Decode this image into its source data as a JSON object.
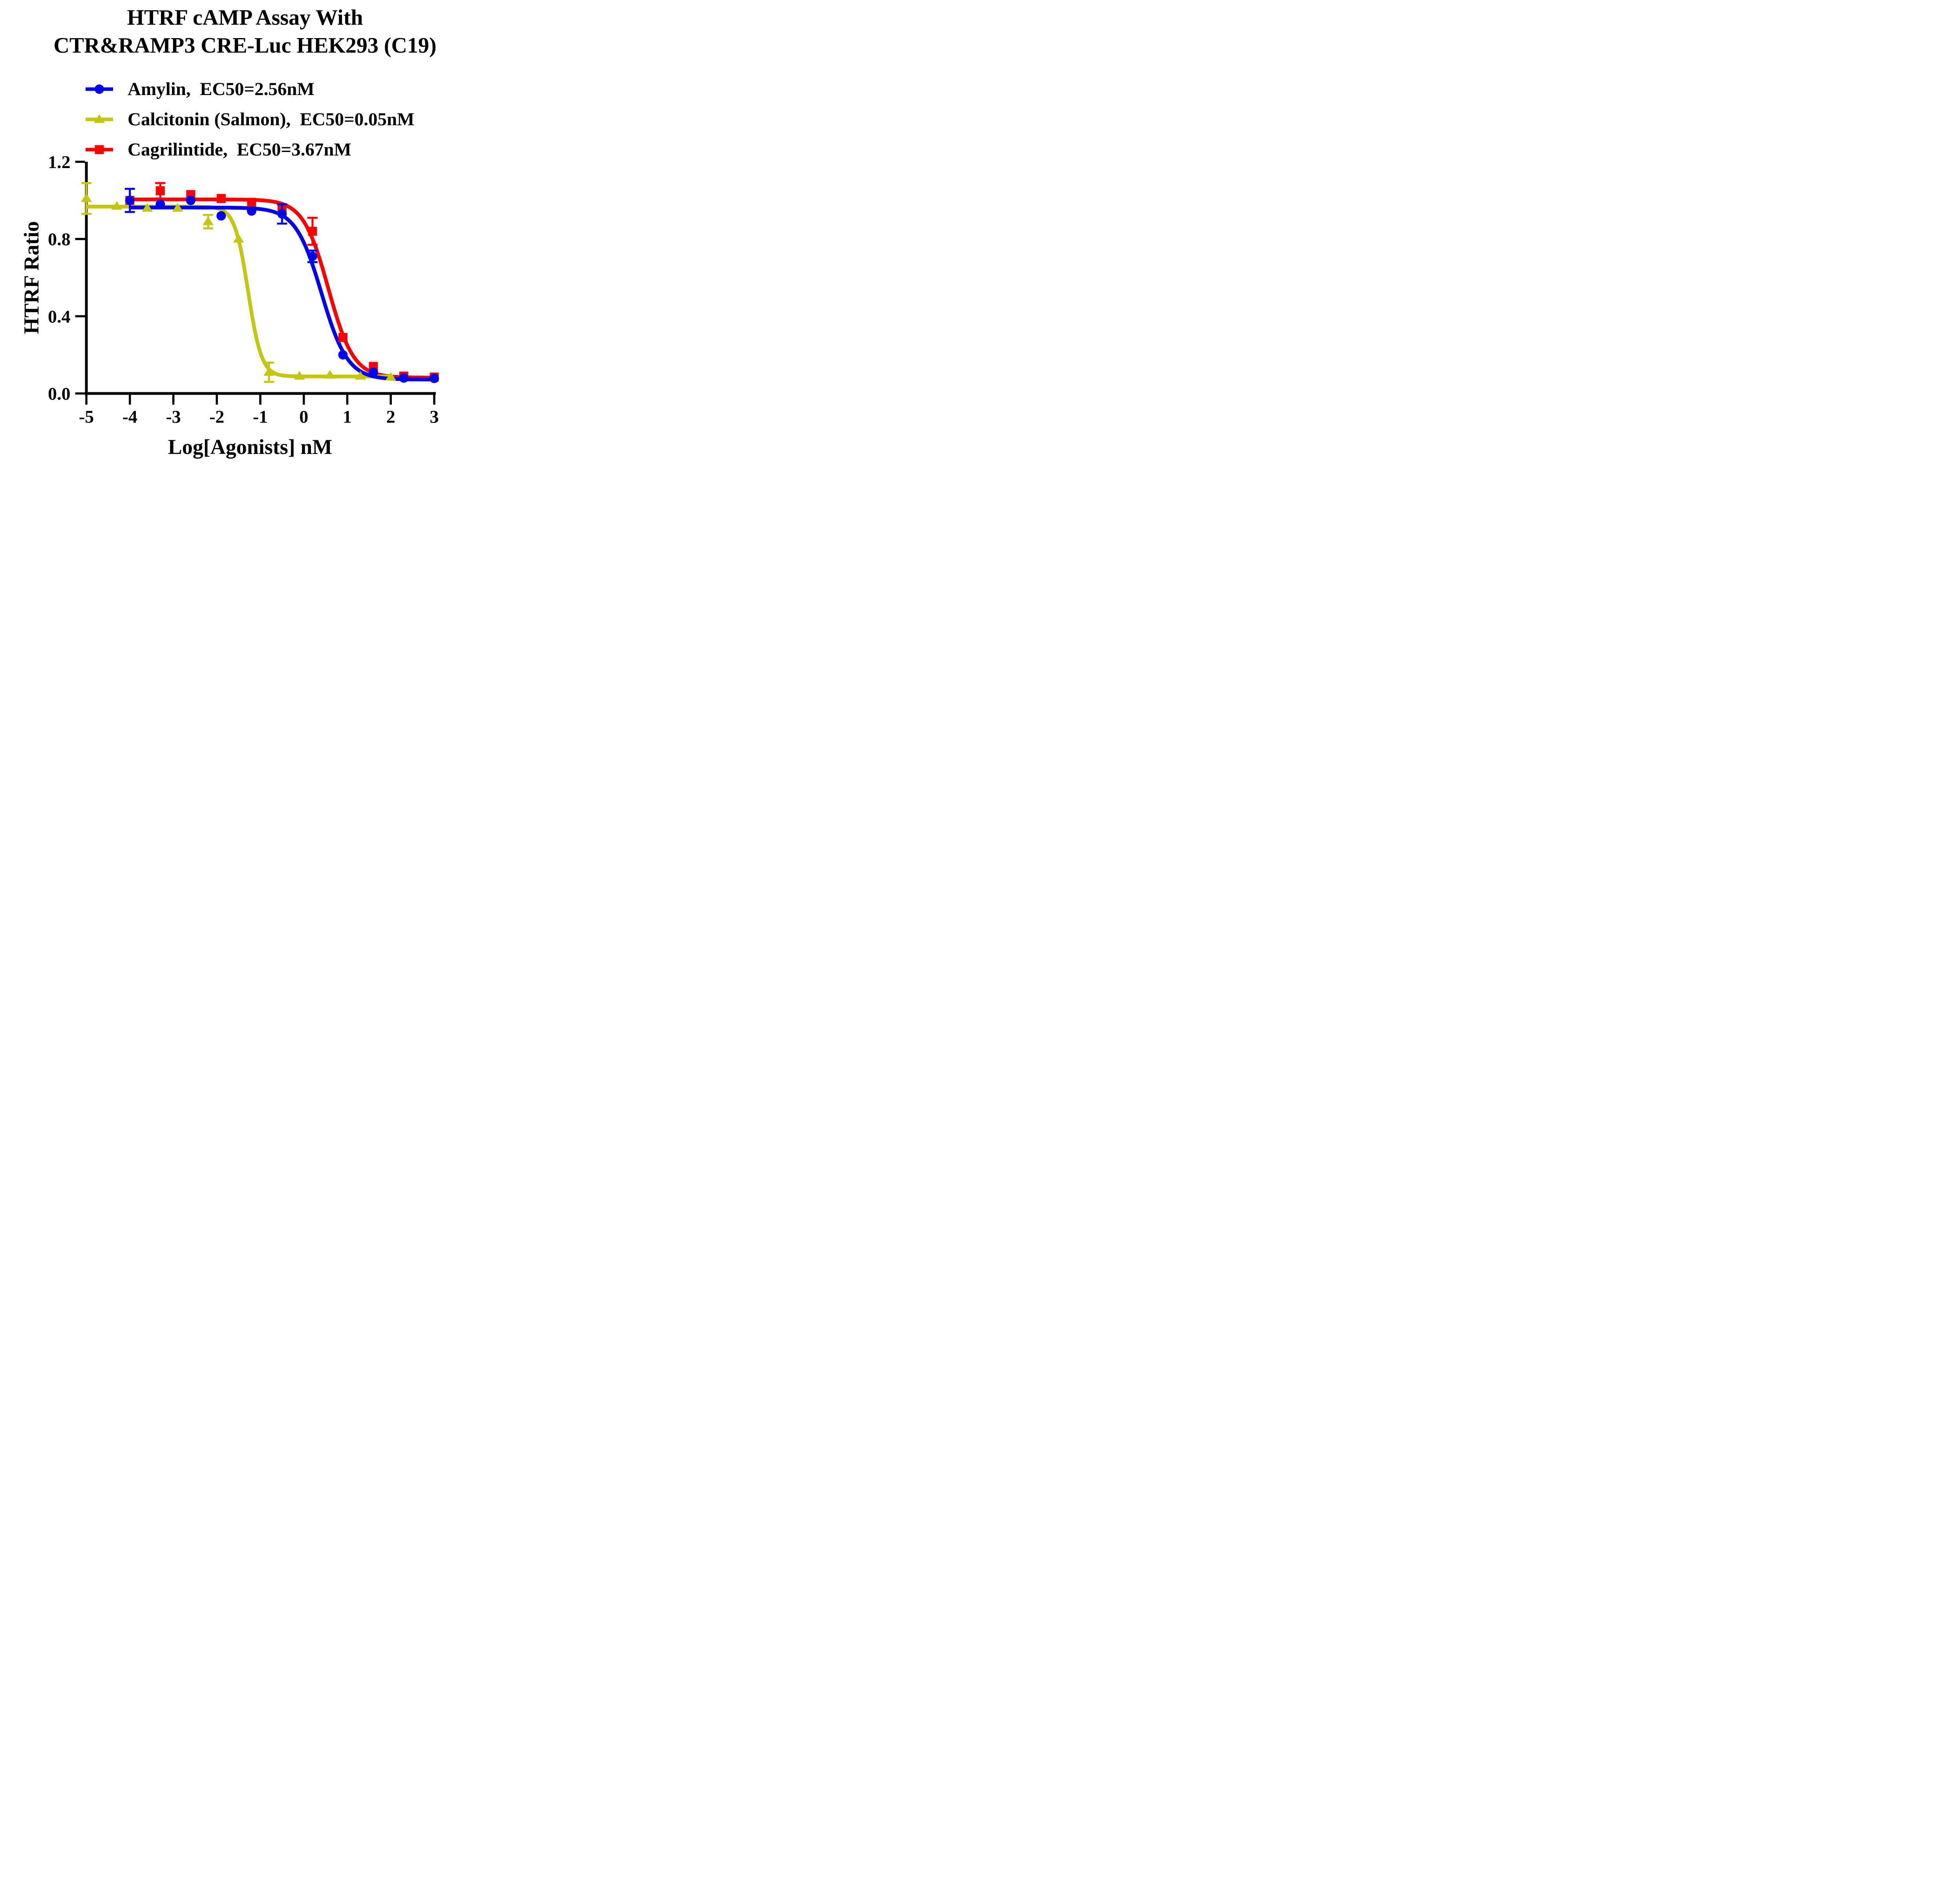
{
  "title": {
    "line1": "HTRF cAMP Assay With",
    "line2": "CTR&RAMP3 CRE-Luc HEK293 (C19)"
  },
  "legend": [
    {
      "label": "Amylin,  EC50=2.56nM",
      "series": "Amylin",
      "color": "#0000ee",
      "marker": "circle"
    },
    {
      "label": "Calcitonin (Salmon),  EC50=0.05nM",
      "series": "Calcitonin (Salmon)",
      "color": "#c5c513",
      "marker": "triangle"
    },
    {
      "label": "Cagrilintide,  EC50=3.67nM",
      "series": "Cagrilintide",
      "color": "#ff0000",
      "marker": "square"
    }
  ],
  "chart_data": {
    "type": "line",
    "title": "HTRF cAMP Assay With CTR&RAMP3 CRE-Luc HEK293 (C19)",
    "xlabel": "Log[Agonists] nM",
    "ylabel": "HTRF Ratio",
    "xlim": [
      -5,
      3
    ],
    "ylim": [
      0.0,
      1.2
    ],
    "xticks": [
      -5,
      -4,
      -3,
      -2,
      -1,
      0,
      1,
      2,
      3
    ],
    "yticks": [
      0.0,
      0.4,
      0.8,
      1.2
    ],
    "grid": false,
    "legend_position": "top-left",
    "axis_color": "#000000",
    "series": [
      {
        "name": "Amylin",
        "ec50_nM": 2.56,
        "color": "#0000ee",
        "marker": "circle",
        "points": [
          {
            "x": -4.0,
            "y": 1.0,
            "err": 0.06
          },
          {
            "x": -3.3,
            "y": 0.98
          },
          {
            "x": -2.6,
            "y": 1.0
          },
          {
            "x": -1.9,
            "y": 0.92
          },
          {
            "x": -1.2,
            "y": 0.945
          },
          {
            "x": -0.5,
            "y": 0.93,
            "err": 0.05
          },
          {
            "x": 0.2,
            "y": 0.71,
            "err": 0.03
          },
          {
            "x": 0.9,
            "y": 0.2
          },
          {
            "x": 1.6,
            "y": 0.11
          },
          {
            "x": 2.3,
            "y": 0.08
          },
          {
            "x": 3.0,
            "y": 0.078
          }
        ],
        "fit": {
          "top": 0.963,
          "bottom": 0.072,
          "logEC50": 0.41,
          "hill": 1.45,
          "x_start": -4.0,
          "x_end": 3.06
        }
      },
      {
        "name": "Calcitonin (Salmon)",
        "ec50_nM": 0.05,
        "color": "#c5c513",
        "marker": "triangle",
        "points": [
          {
            "x": -5.0,
            "y": 1.01,
            "err": 0.08
          },
          {
            "x": -4.3,
            "y": 0.97
          },
          {
            "x": -3.6,
            "y": 0.96
          },
          {
            "x": -2.9,
            "y": 0.96
          },
          {
            "x": -2.2,
            "y": 0.89,
            "err": 0.035
          },
          {
            "x": -1.5,
            "y": 0.8
          },
          {
            "x": -0.8,
            "y": 0.11,
            "err": 0.05
          },
          {
            "x": -0.1,
            "y": 0.09
          },
          {
            "x": 0.6,
            "y": 0.095
          },
          {
            "x": 1.3,
            "y": 0.09
          },
          {
            "x": 2.0,
            "y": 0.085
          }
        ],
        "fit": {
          "top": 0.968,
          "bottom": 0.088,
          "logEC50": -1.28,
          "hill": 2.8,
          "x_start": -5.0,
          "x_end": 2.06
        }
      },
      {
        "name": "Cagrilintide",
        "ec50_nM": 3.67,
        "color": "#ff0000",
        "marker": "square",
        "points": [
          {
            "x": -4.0,
            "y": 1.0
          },
          {
            "x": -3.3,
            "y": 1.05,
            "err": 0.04
          },
          {
            "x": -2.6,
            "y": 1.03
          },
          {
            "x": -1.9,
            "y": 1.01
          },
          {
            "x": -1.2,
            "y": 0.99
          },
          {
            "x": -0.5,
            "y": 0.96
          },
          {
            "x": 0.2,
            "y": 0.84,
            "err": 0.07
          },
          {
            "x": 0.9,
            "y": 0.29
          },
          {
            "x": 1.6,
            "y": 0.14
          },
          {
            "x": 2.3,
            "y": 0.09
          },
          {
            "x": 3.0,
            "y": 0.085
          }
        ],
        "fit": {
          "top": 1.005,
          "bottom": 0.082,
          "logEC50": 0.565,
          "hill": 1.5,
          "x_start": -4.0,
          "x_end": 3.06
        }
      }
    ]
  }
}
